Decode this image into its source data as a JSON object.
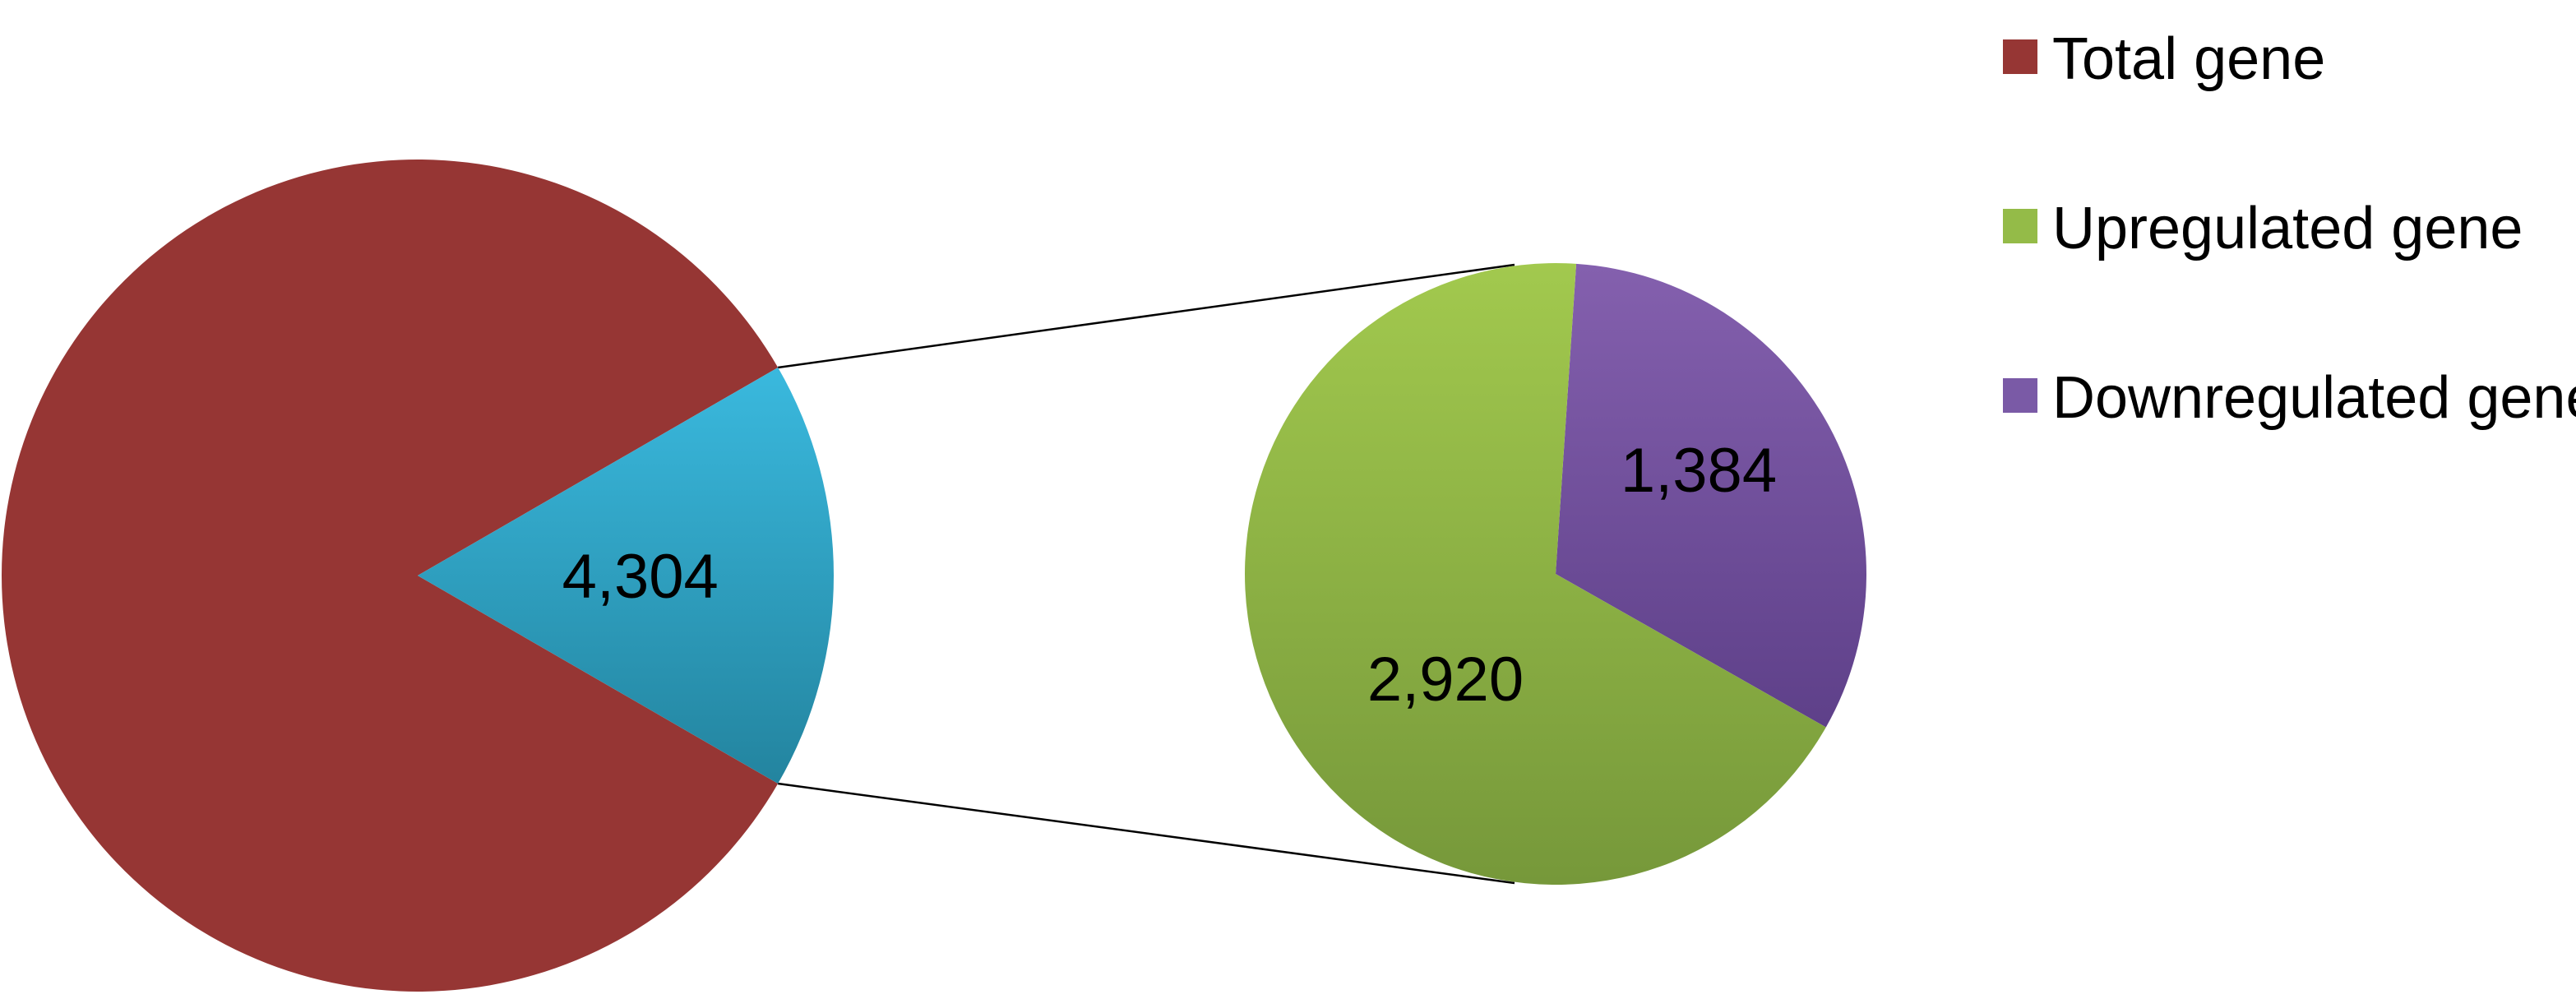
{
  "chart_data": {
    "type": "pie",
    "subtype": "pie-of-pie",
    "main_pie": {
      "slices": [
        {
          "name": "Total gene",
          "value": null,
          "color": "#963634",
          "label": ""
        },
        {
          "name": "",
          "value": 4304,
          "color": "#33B0D3",
          "label": "4,304"
        }
      ],
      "detail_slice": "4,304",
      "detail_fraction": 0.1667
    },
    "secondary_pie": {
      "slices": [
        {
          "name": "Upregulated gene",
          "value": 2920,
          "color": "#94BB48",
          "label": "2,920"
        },
        {
          "name": "Downregulated gene",
          "value": 1384,
          "color": "#7A5AA6",
          "label": "1,384"
        }
      ]
    },
    "legend": {
      "placement": "top-right",
      "items": [
        {
          "name": "Total gene",
          "color": "#963634"
        },
        {
          "name": "Upregulated gene",
          "color": "#94BB48"
        },
        {
          "name": "Downregulated gene",
          "color": "#7A5AA6"
        }
      ]
    },
    "title": ""
  }
}
